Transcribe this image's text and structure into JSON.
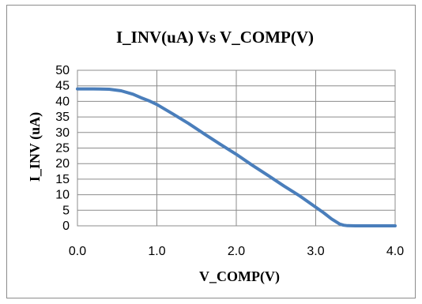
{
  "chart_data": {
    "type": "line",
    "title": "I_INV(uA) Vs V_COMP(V)",
    "xlabel": "V_COMP(V)",
    "ylabel": "I_INV (uA)",
    "xlim": [
      0,
      4
    ],
    "ylim": [
      0,
      50
    ],
    "x_ticks": [
      "0.0",
      "1.0",
      "2.0",
      "3.0",
      "4.0"
    ],
    "y_ticks": [
      "0",
      "5",
      "10",
      "15",
      "20",
      "25",
      "30",
      "35",
      "40",
      "45",
      "50"
    ],
    "grid": true,
    "legend": "none",
    "series": [
      {
        "color": "#4a7ebb",
        "x": [
          0.0,
          0.2,
          0.4,
          0.55,
          0.7,
          0.8,
          0.9,
          1.0,
          1.2,
          1.4,
          1.6,
          1.8,
          2.0,
          2.2,
          2.4,
          2.6,
          2.8,
          3.0,
          3.1,
          3.2,
          3.3,
          3.35,
          3.4,
          3.5,
          3.6,
          3.8,
          4.0
        ],
        "y": [
          44.0,
          44.0,
          43.9,
          43.4,
          42.3,
          41.2,
          40.2,
          39.0,
          36.0,
          32.9,
          29.5,
          26.2,
          23.0,
          19.5,
          16.2,
          12.8,
          9.6,
          6.0,
          4.2,
          2.2,
          0.6,
          0.2,
          0.05,
          0.0,
          0.0,
          0.0,
          0.0
        ]
      }
    ]
  }
}
